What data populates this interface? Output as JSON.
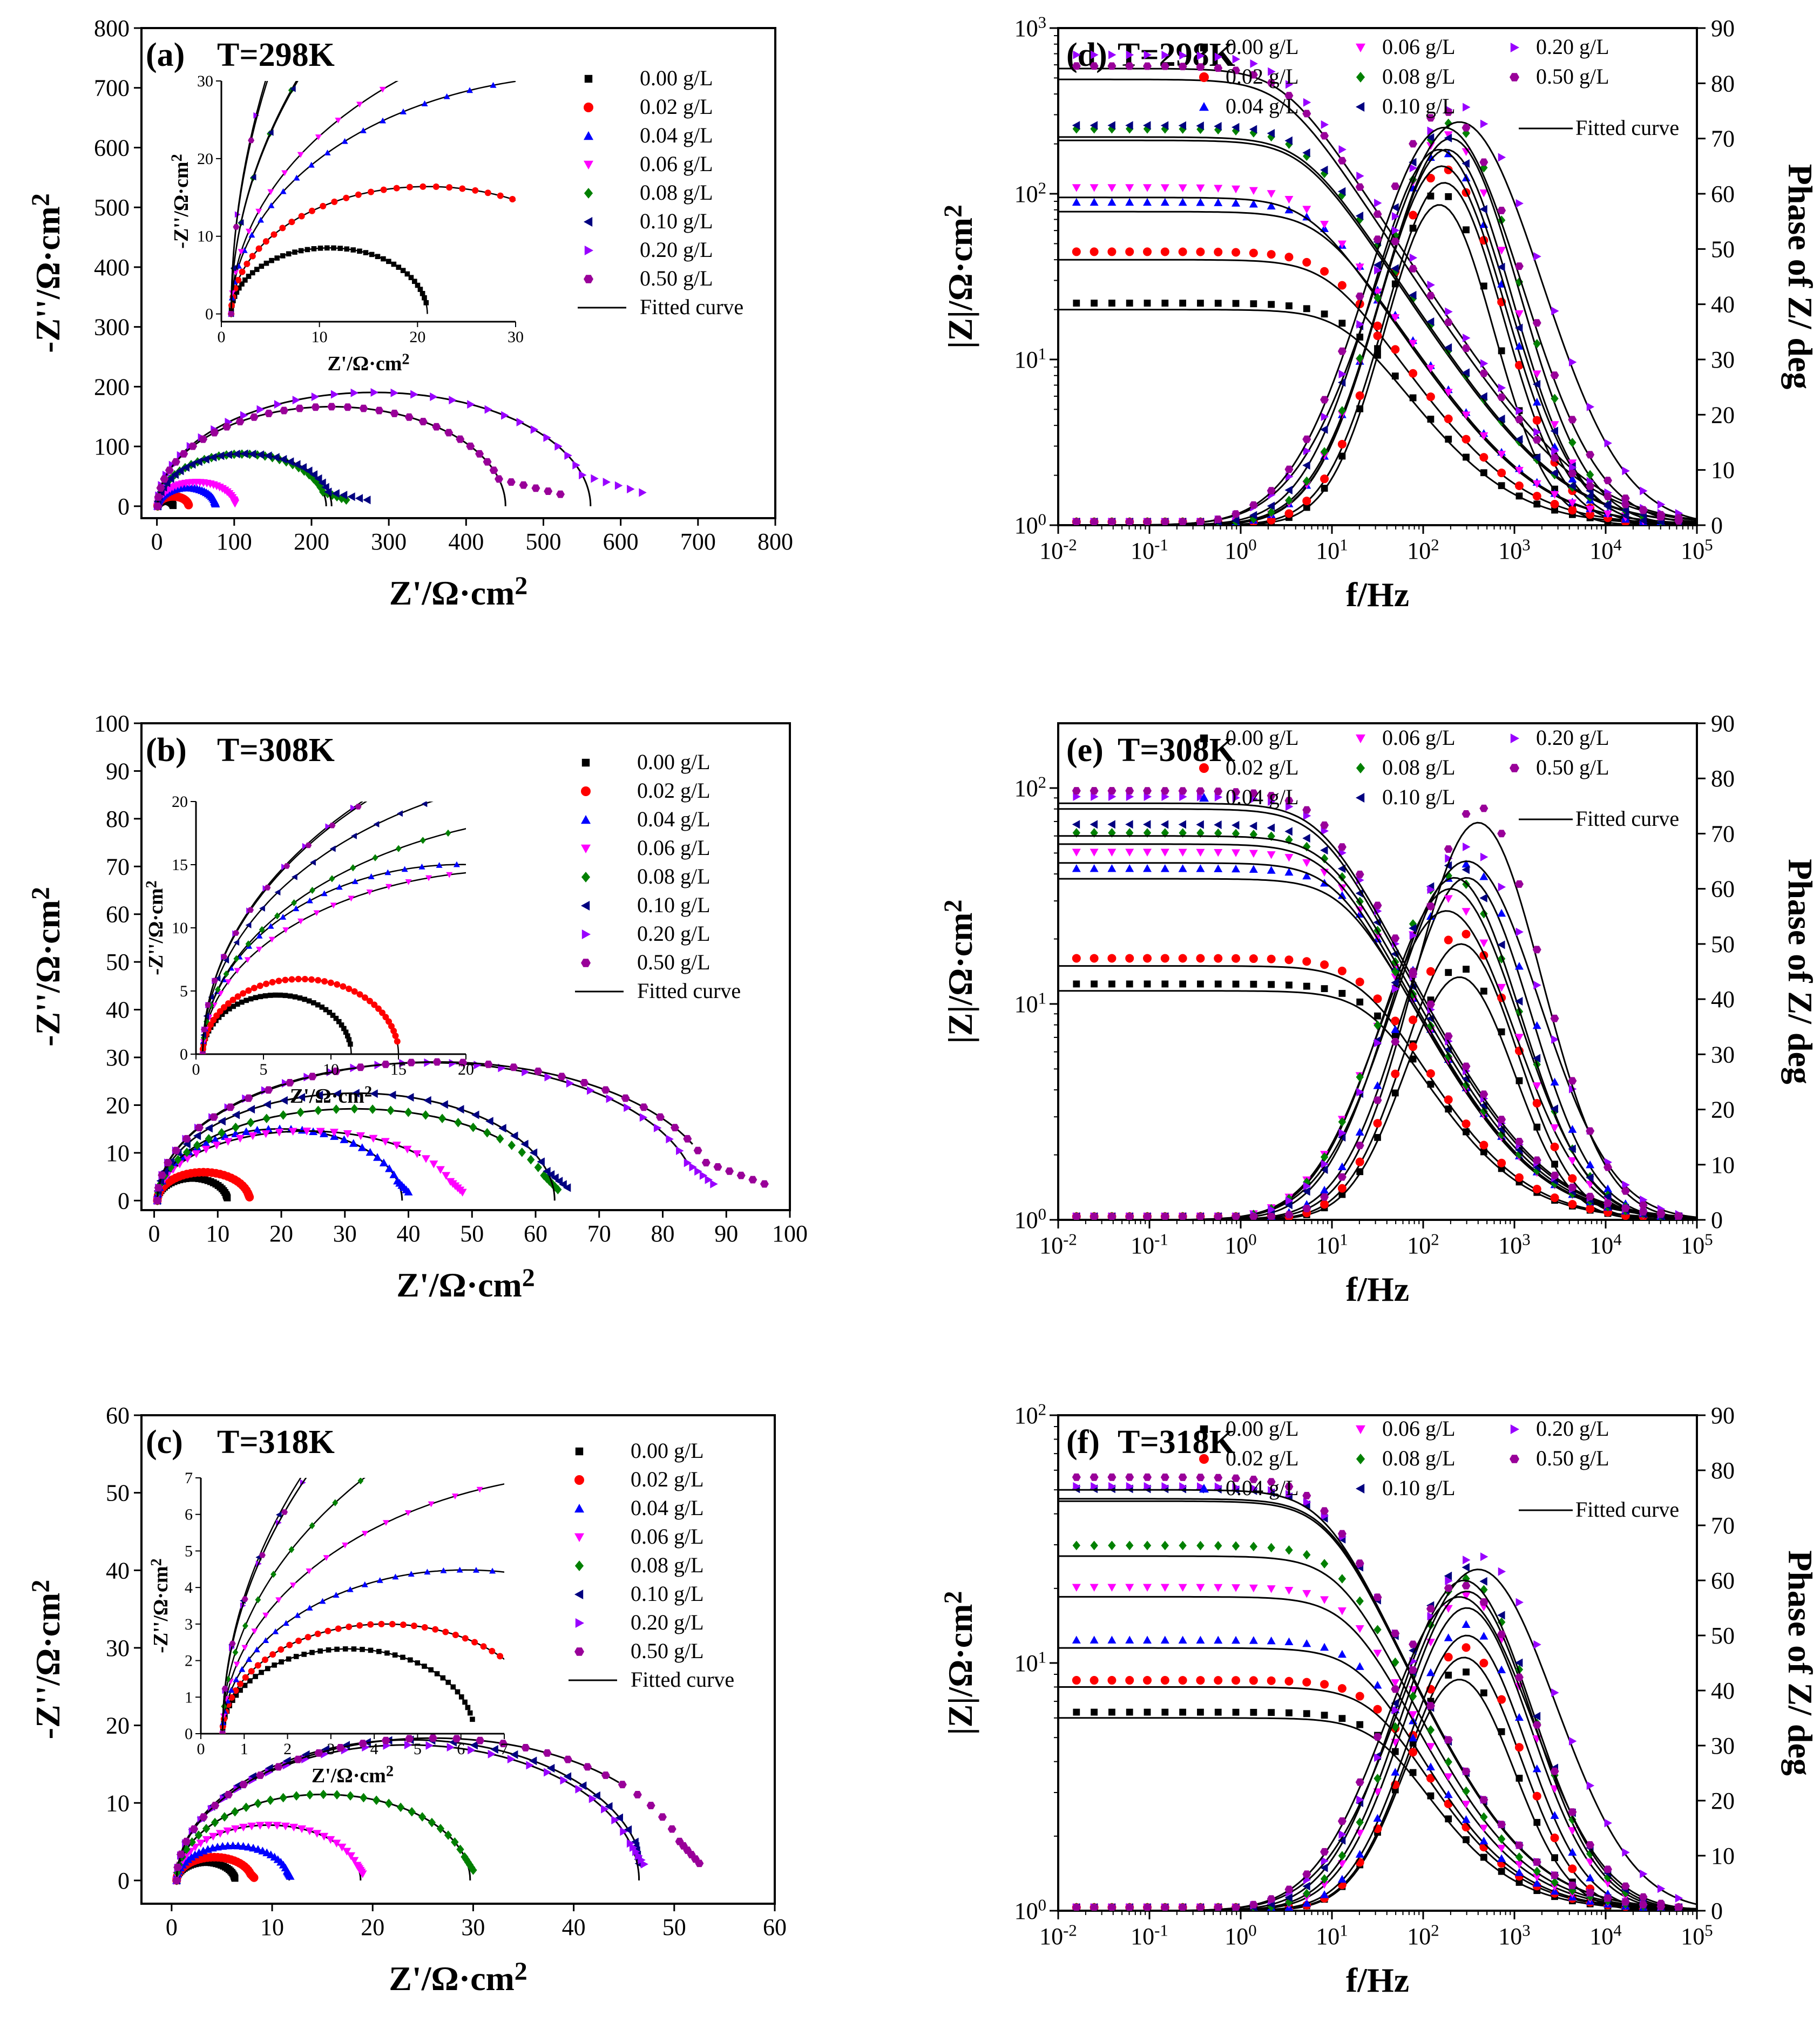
{
  "figure": {
    "series_names": [
      "0.00 g/L",
      "0.02 g/L",
      "0.04 g/L",
      "0.06 g/L",
      "0.08 g/L",
      "0.10 g/L",
      "0.20 g/L",
      "0.50 g/L"
    ],
    "fitted_label": "Fitted curve",
    "colors": [
      "#000000",
      "#ff0000",
      "#0000ff",
      "#ff00ff",
      "#008000",
      "#000080",
      "#9900ff",
      "#990099"
    ],
    "markers": [
      "square",
      "circle",
      "triangle-up",
      "triangle-down",
      "diamond",
      "triangle-left",
      "triangle-right",
      "hexagon"
    ]
  },
  "chart_data": [
    {
      "id": "a",
      "type": "scatter",
      "subtype": "nyquist",
      "panel_label": "(a)",
      "title": "T=298K",
      "xlabel": "Z'/Ω·cm",
      "xlabel_sup": "2",
      "ylabel": "-Z''/Ω·cm",
      "ylabel_sup": "2",
      "xlim": [
        -20,
        800
      ],
      "ylim": [
        -20,
        800
      ],
      "xticks": [
        0,
        100,
        200,
        300,
        400,
        500,
        600,
        700,
        800
      ],
      "yticks": [
        0,
        100,
        200,
        300,
        400,
        500,
        600,
        700,
        800
      ],
      "series": [
        {
          "name": "0.00 g/L",
          "rs": 1,
          "rct": 20,
          "dep": 0.85,
          "tail_end": 21,
          "fit_end": 21
        },
        {
          "name": "0.02 g/L",
          "rs": 1,
          "rct": 40,
          "dep": 0.82,
          "tail_end": 41,
          "fit_end": 41
        },
        {
          "name": "0.04 g/L",
          "rs": 1,
          "rct": 75,
          "dep": 0.82,
          "tail_end": 76,
          "fit_end": 76
        },
        {
          "name": "0.06 g/L",
          "rs": 1,
          "rct": 100,
          "dep": 0.8,
          "tail_end": 101,
          "fit_end": 100
        },
        {
          "name": "0.08 g/L",
          "rs": 1,
          "rct": 218,
          "dep": 0.8,
          "tail_end": 245,
          "fit_end": 230
        },
        {
          "name": "0.10 g/L",
          "rs": 1,
          "rct": 225,
          "dep": 0.78,
          "tail_end": 272,
          "fit_end": 235
        },
        {
          "name": "0.20 g/L",
          "rs": 1,
          "rct": 560,
          "dep": 0.68,
          "tail_end": 628,
          "fit_end": 583
        },
        {
          "name": "0.50 g/L",
          "rs": 1,
          "rct": 450,
          "dep": 0.74,
          "tail_end": 522,
          "fit_end": 473
        }
      ],
      "inset": {
        "xlabel": "Z'/Ω·cm",
        "xlabel_sup": "2",
        "ylabel": "-Z''/Ω·cm",
        "ylabel_sup": "2",
        "xlim": [
          0,
          30
        ],
        "ylim": [
          -1,
          30
        ],
        "xticks": [
          0,
          10,
          20,
          30
        ],
        "yticks": [
          0,
          10,
          20,
          30
        ]
      }
    },
    {
      "id": "b",
      "type": "scatter",
      "subtype": "nyquist",
      "panel_label": "(b)",
      "title": "T=308K",
      "xlabel": "Z'/Ω·cm",
      "xlabel_sup": "2",
      "ylabel": "-Z''/Ω·cm",
      "ylabel_sup": "2",
      "xlim": [
        -2,
        100
      ],
      "ylim": [
        -2,
        100
      ],
      "xticks": [
        0,
        10,
        20,
        30,
        40,
        50,
        60,
        70,
        80,
        90,
        100
      ],
      "yticks": [
        0,
        10,
        20,
        30,
        40,
        50,
        60,
        70,
        80,
        90,
        100
      ],
      "series": [
        {
          "name": "0.00 g/L",
          "rs": 0.5,
          "rct": 11,
          "dep": 0.85,
          "tail_end": 11.5,
          "fit_end": 11.5
        },
        {
          "name": "0.02 g/L",
          "rs": 0.5,
          "rct": 14.5,
          "dep": 0.82,
          "tail_end": 15,
          "fit_end": 15
        },
        {
          "name": "0.04 g/L",
          "rs": 0.5,
          "rct": 38.5,
          "dep": 0.78,
          "tail_end": 40,
          "fit_end": 39
        },
        {
          "name": "0.06 g/L",
          "rs": 0.5,
          "rct": 47,
          "dep": 0.62,
          "tail_end": 48.5,
          "fit_end": 42
        },
        {
          "name": "0.08 g/L",
          "rs": 0.5,
          "rct": 62,
          "dep": 0.62,
          "tail_end": 63.5,
          "fit_end": 54
        },
        {
          "name": "0.10 g/L",
          "rs": 0.5,
          "rct": 62.5,
          "dep": 0.72,
          "tail_end": 65,
          "fit_end": 63
        },
        {
          "name": "0.20 g/L",
          "rs": 0.5,
          "rct": 85,
          "dep": 0.68,
          "tail_end": 88,
          "fit_end": 84
        },
        {
          "name": "0.50 g/L",
          "rs": 0.5,
          "rct": 88,
          "dep": 0.66,
          "tail_end": 96,
          "fit_end": 85
        }
      ],
      "inset": {
        "xlabel": "Z'/Ω·cm",
        "xlabel_sup": "2",
        "ylabel": "-Z''/Ω·cm",
        "ylabel_sup": "2",
        "xlim": [
          0,
          20
        ],
        "ylim": [
          0,
          20
        ],
        "xticks": [
          0,
          5,
          10,
          15,
          20
        ],
        "yticks": [
          0,
          5,
          10,
          15,
          20
        ]
      }
    },
    {
      "id": "c",
      "type": "scatter",
      "subtype": "nyquist",
      "panel_label": "(c)",
      "title": "T=318K",
      "xlabel": "Z'/Ω·cm",
      "xlabel_sup": "2",
      "ylabel": "-Z''/Ω·cm",
      "ylabel_sup": "2",
      "xlim": [
        -3,
        60
      ],
      "ylim": [
        -3,
        60
      ],
      "xticks": [
        0,
        10,
        20,
        30,
        40,
        50,
        60
      ],
      "yticks": [
        0,
        10,
        20,
        30,
        40,
        50,
        60
      ],
      "series": [
        {
          "name": "0.00 g/L",
          "rs": 0.5,
          "rct": 5.8,
          "dep": 0.8,
          "tail_end": 6.3,
          "fit_end": 6.2
        },
        {
          "name": "0.02 g/L",
          "rs": 0.5,
          "rct": 7.5,
          "dep": 0.8,
          "tail_end": 8.2,
          "fit_end": 8.0
        },
        {
          "name": "0.04 g/L",
          "rs": 0.5,
          "rct": 11.2,
          "dep": 0.8,
          "tail_end": 11.8,
          "fit_end": 11.7
        },
        {
          "name": "0.06 g/L",
          "rs": 0.5,
          "rct": 18.3,
          "dep": 0.78,
          "tail_end": 19,
          "fit_end": 18.8
        },
        {
          "name": "0.08 g/L",
          "rs": 0.5,
          "rct": 29.2,
          "dep": 0.76,
          "tail_end": 30,
          "fit_end": 29.7
        },
        {
          "name": "0.10 g/L",
          "rs": 0.5,
          "rct": 46.5,
          "dep": 0.78,
          "tail_end": 46.5,
          "fit_end": 46.7
        },
        {
          "name": "0.20 g/L",
          "rs": 0.5,
          "rct": 46,
          "dep": 0.76,
          "tail_end": 47,
          "fit_end": 47.2
        },
        {
          "name": "0.50 g/L",
          "rs": 0.5,
          "rct": 51,
          "dep": 0.72,
          "tail_end": 52.5,
          "fit_end": 44.5
        }
      ],
      "inset": {
        "xlabel": "Z'/Ω·cm",
        "xlabel_sup": "2",
        "ylabel": "-Z''/Ω·cm",
        "ylabel_sup": "2",
        "xlim": [
          0,
          7
        ],
        "ylim": [
          0,
          7
        ],
        "xticks": [
          0,
          1,
          2,
          3,
          4,
          5,
          6,
          7
        ],
        "yticks": [
          0,
          1,
          2,
          3,
          4,
          5,
          6,
          7
        ]
      }
    },
    {
      "id": "d",
      "type": "scatter",
      "subtype": "bode",
      "panel_label": "(d)",
      "title": "T=298K",
      "xlabel": "f/Hz",
      "ylabel": "|Z|/Ω·cm",
      "ylabel_sup": "2",
      "y2label": "Phase of  Z/ deg",
      "xlog": [
        -2,
        5
      ],
      "ylog": [
        0,
        3
      ],
      "y2lim": [
        0,
        90
      ],
      "y2ticks": [
        0,
        10,
        20,
        30,
        40,
        50,
        60,
        70,
        80,
        90
      ],
      "series": [
        {
          "name": "0.00 g/L",
          "z0": 20,
          "fc": 15,
          "pmax": 58,
          "fp": 150,
          "wd": 0.6
        },
        {
          "name": "0.02 g/L",
          "z0": 40,
          "fc": 10,
          "pmax": 62,
          "fp": 170,
          "wd": 0.65
        },
        {
          "name": "0.04 g/L",
          "z0": 78,
          "fc": 8,
          "pmax": 65,
          "fp": 160,
          "wd": 0.7
        },
        {
          "name": "0.06 g/L",
          "z0": 95,
          "fc": 6,
          "pmax": 68,
          "fp": 180,
          "wd": 0.72
        },
        {
          "name": "0.08 g/L",
          "z0": 210,
          "fc": 5,
          "pmax": 70,
          "fp": 200,
          "wd": 0.75
        },
        {
          "name": "0.10 g/L",
          "z0": 220,
          "fc": 5,
          "pmax": 68,
          "fp": 150,
          "wd": 0.75
        },
        {
          "name": "0.20 g/L",
          "z0": 570,
          "fc": 3,
          "pmax": 73,
          "fp": 250,
          "wd": 0.9
        },
        {
          "name": "0.50 g/L",
          "z0": 490,
          "fc": 3,
          "pmax": 72,
          "fp": 170,
          "wd": 0.85
        }
      ]
    },
    {
      "id": "e",
      "type": "scatter",
      "subtype": "bode",
      "panel_label": "(e)",
      "title": "T=308K",
      "xlabel": "f/Hz",
      "ylabel": "|Z|/Ω·cm",
      "ylabel_sup": "2",
      "y2label": "Phase of  Z/ deg",
      "xlog": [
        -2,
        5
      ],
      "ylog": [
        0,
        2.3
      ],
      "y2lim": [
        0,
        90
      ],
      "y2ticks": [
        0,
        10,
        20,
        30,
        40,
        50,
        60,
        70,
        80,
        90
      ],
      "series": [
        {
          "name": "0.00 g/L",
          "z0": 11.5,
          "fc": 30,
          "pmax": 44,
          "fp": 250,
          "wd": 0.6
        },
        {
          "name": "0.02 g/L",
          "z0": 15,
          "fc": 25,
          "pmax": 50,
          "fp": 260,
          "wd": 0.62
        },
        {
          "name": "0.04 g/L",
          "z0": 38,
          "fc": 15,
          "pmax": 62,
          "fp": 300,
          "wd": 0.7
        },
        {
          "name": "0.06 g/L",
          "z0": 45,
          "fc": 12,
          "pmax": 56,
          "fp": 180,
          "wd": 0.75
        },
        {
          "name": "0.08 g/L",
          "z0": 55,
          "fc": 10,
          "pmax": 60,
          "fp": 200,
          "wd": 0.75
        },
        {
          "name": "0.10 g/L",
          "z0": 60,
          "fc": 10,
          "pmax": 62,
          "fp": 220,
          "wd": 0.72
        },
        {
          "name": "0.20 g/L",
          "z0": 80,
          "fc": 8,
          "pmax": 65,
          "fp": 300,
          "wd": 0.8
        },
        {
          "name": "0.50 g/L",
          "z0": 85,
          "fc": 8,
          "pmax": 72,
          "fp": 400,
          "wd": 0.7
        }
      ]
    },
    {
      "id": "f",
      "type": "scatter",
      "subtype": "bode",
      "panel_label": "(f)",
      "title": "T=318K",
      "xlabel": "f/Hz",
      "ylabel": "|Z|/Ω·cm",
      "ylabel_sup": "2",
      "y2label": "Phase of  Z/ deg",
      "xlog": [
        -2,
        5
      ],
      "ylog": [
        0,
        2
      ],
      "y2lim": [
        0,
        90
      ],
      "y2ticks": [
        0,
        10,
        20,
        30,
        40,
        50,
        60,
        70,
        80,
        90
      ],
      "series": [
        {
          "name": "0.00 g/L",
          "z0": 6,
          "fc": 40,
          "pmax": 42,
          "fp": 250,
          "wd": 0.6
        },
        {
          "name": "0.02 g/L",
          "z0": 8,
          "fc": 35,
          "pmax": 46,
          "fp": 280,
          "wd": 0.62
        },
        {
          "name": "0.04 g/L",
          "z0": 11.5,
          "fc": 25,
          "pmax": 50,
          "fp": 300,
          "wd": 0.65
        },
        {
          "name": "0.06 g/L",
          "z0": 18.5,
          "fc": 18,
          "pmax": 55,
          "fp": 300,
          "wd": 0.7
        },
        {
          "name": "0.08 g/L",
          "z0": 27,
          "fc": 14,
          "pmax": 58,
          "fp": 300,
          "wd": 0.72
        },
        {
          "name": "0.10 g/L",
          "z0": 45,
          "fc": 10,
          "pmax": 60,
          "fp": 280,
          "wd": 0.75
        },
        {
          "name": "0.20 g/L",
          "z0": 46,
          "fc": 10,
          "pmax": 62,
          "fp": 400,
          "wd": 0.85
        },
        {
          "name": "0.50 g/L",
          "z0": 50,
          "fc": 9,
          "pmax": 57,
          "fp": 250,
          "wd": 0.8
        }
      ]
    }
  ]
}
